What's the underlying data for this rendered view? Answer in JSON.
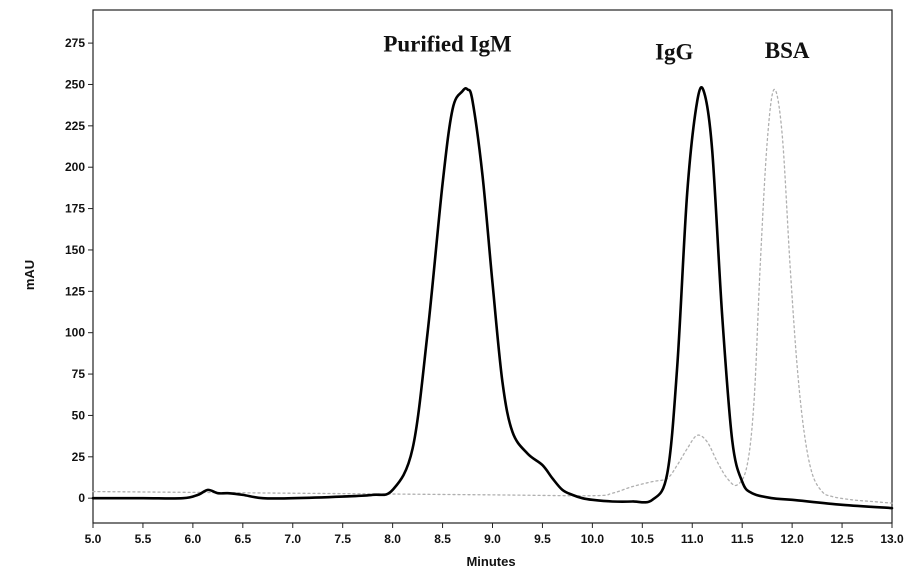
{
  "chart_data": {
    "type": "line",
    "title": "",
    "xlabel": "Minutes",
    "ylabel": "mAU",
    "xlim": [
      5.0,
      13.0
    ],
    "ylim": [
      -15,
      295
    ],
    "x_ticks": [
      "5.0",
      "5.5",
      "6.0",
      "6.5",
      "7.0",
      "7.5",
      "8.0",
      "8.5",
      "9.0",
      "9.5",
      "10.0",
      "10.5",
      "11.0",
      "11.5",
      "12.0",
      "12.5",
      "13.0"
    ],
    "y_ticks": [
      "0",
      "25",
      "50",
      "75",
      "100",
      "125",
      "150",
      "175",
      "200",
      "225",
      "250",
      "275"
    ],
    "grid": false,
    "annotations": [
      {
        "text": "Purified IgM",
        "x": 8.55,
        "y": 270
      },
      {
        "text": "IgG",
        "x": 10.82,
        "y": 265
      },
      {
        "text": "BSA",
        "x": 11.95,
        "y": 266
      }
    ],
    "series": [
      {
        "color": "#000000",
        "style": "solid",
        "x": [
          5.0,
          5.5,
          5.9,
          6.05,
          6.15,
          6.25,
          6.35,
          6.5,
          6.7,
          7.0,
          7.5,
          7.8,
          8.0,
          8.2,
          8.35,
          8.5,
          8.6,
          8.7,
          8.75,
          8.8,
          8.9,
          9.0,
          9.1,
          9.2,
          9.35,
          9.5,
          9.6,
          9.7,
          9.8,
          9.9,
          10.0,
          10.2,
          10.4,
          10.6,
          10.75,
          10.85,
          10.95,
          11.05,
          11.12,
          11.2,
          11.3,
          11.4,
          11.5,
          11.6,
          11.8,
          12.0,
          12.5,
          13.0
        ],
        "y": [
          0,
          0,
          0,
          2,
          5,
          3,
          3,
          2,
          0,
          0,
          1,
          2,
          5,
          30,
          100,
          190,
          235,
          246,
          247,
          240,
          195,
          130,
          70,
          40,
          27,
          20,
          12,
          5,
          2,
          0,
          -1,
          -2,
          -2,
          -1,
          15,
          80,
          185,
          240,
          245,
          210,
          110,
          35,
          10,
          3,
          0,
          -1,
          -4,
          -6
        ]
      },
      {
        "color": "#b0b0b0",
        "style": "dashed",
        "x": [
          5.0,
          6.0,
          7.0,
          8.0,
          9.0,
          10.0,
          10.2,
          10.4,
          10.6,
          10.75,
          10.85,
          10.95,
          11.05,
          11.15,
          11.25,
          11.35,
          11.45,
          11.55,
          11.62,
          11.68,
          11.75,
          11.82,
          11.9,
          11.98,
          12.05,
          12.12,
          12.2,
          12.3,
          12.4,
          12.6,
          12.8,
          13.0
        ],
        "y": [
          4,
          3.5,
          3,
          2.5,
          2,
          1.5,
          3,
          7,
          10,
          12,
          20,
          30,
          38,
          34,
          22,
          12,
          8,
          20,
          60,
          140,
          215,
          247,
          220,
          140,
          80,
          40,
          15,
          4,
          1,
          -1,
          -2,
          -3
        ]
      }
    ]
  }
}
